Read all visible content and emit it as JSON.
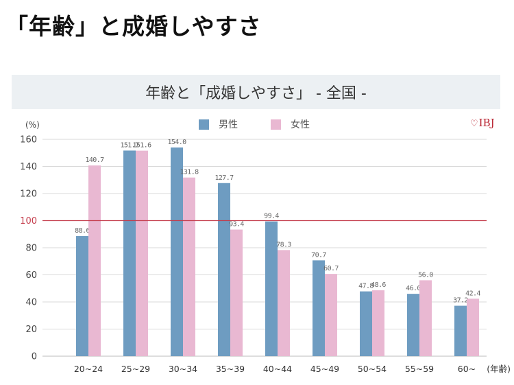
{
  "heading": "「年齢」と成婚しやすさ",
  "brand": {
    "text": "IBJ",
    "icon": "heart-icon",
    "color": "#b8202e"
  },
  "colors": {
    "male": "#6e9cc1",
    "female": "#e9b8d2",
    "reference": "#c43b4a",
    "grid": "#d9d9d9"
  },
  "chart_data": {
    "type": "bar",
    "title": "年齢と「成婚しやすさ」 - 全国 -",
    "ylabel": "(%)",
    "xlabel": "(年齢)",
    "ylim": [
      0,
      160
    ],
    "yticks": [
      0,
      20,
      40,
      60,
      80,
      100,
      120,
      140,
      160
    ],
    "reference_line": {
      "value": 100,
      "label": "100"
    },
    "grid": true,
    "legend_position": "top-center",
    "categories": [
      "20~24",
      "25~29",
      "30~34",
      "35~39",
      "40~44",
      "45~49",
      "50~54",
      "55~59",
      "60~"
    ],
    "series": [
      {
        "name": "男性",
        "values": [
          88.6,
          151.7,
          154.0,
          127.7,
          99.4,
          70.7,
          47.8,
          46.0,
          37.2
        ],
        "labels": [
          "88.6",
          "151.7",
          "154.0",
          "127.7",
          "99.4",
          "70.7",
          "47.8",
          "46.0",
          "37.2"
        ]
      },
      {
        "name": "女性",
        "values": [
          140.7,
          151.6,
          131.8,
          93.4,
          78.3,
          60.7,
          48.6,
          56.0,
          42.4
        ],
        "labels": [
          "140.7",
          "151.6",
          "131.8",
          "93.4",
          "78.3",
          "60.7",
          "48.6",
          "56.0",
          "42.4"
        ]
      }
    ]
  }
}
